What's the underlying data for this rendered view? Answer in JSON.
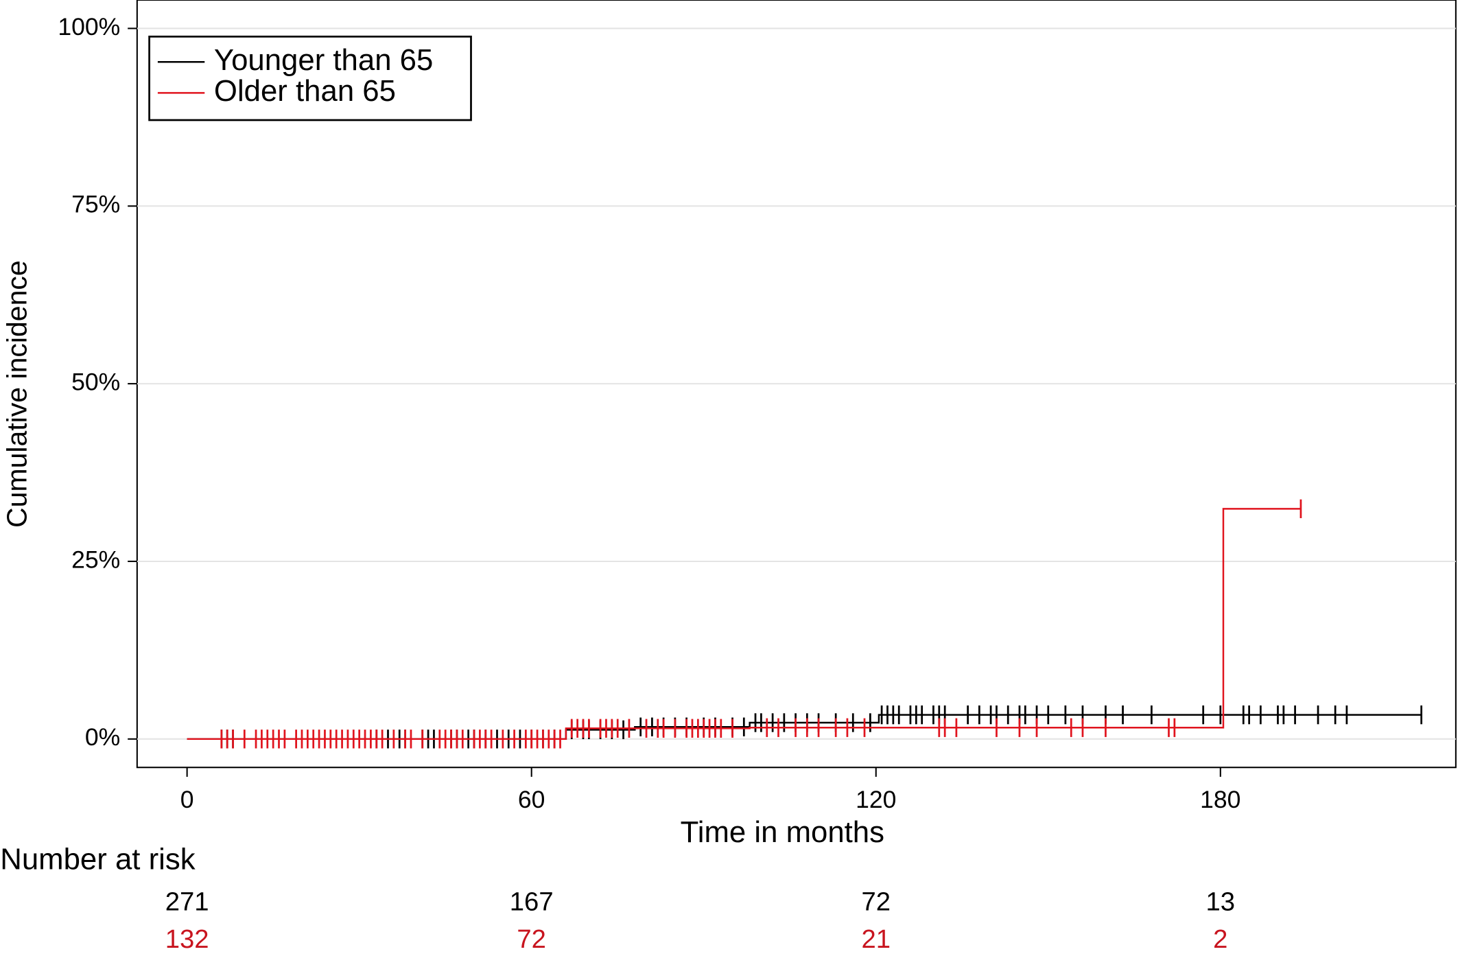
{
  "chart_data": {
    "type": "step",
    "y_label": "Cumulative incidence",
    "x_label": "Time in months",
    "xlim": [
      -8.7,
      221
    ],
    "ylim": [
      -4,
      104
    ],
    "xticks": [
      0,
      60,
      120,
      180
    ],
    "yticks": [
      {
        "value": 0,
        "label": "0%"
      },
      {
        "value": 25,
        "label": "25%"
      },
      {
        "value": 50,
        "label": "50%"
      },
      {
        "value": 75,
        "label": "75%"
      },
      {
        "value": 100,
        "label": "100%"
      }
    ],
    "grid": true,
    "legend": "upper left",
    "series": [
      {
        "name": "Younger than 65",
        "color": "#000000",
        "x": [
          0,
          66,
          78,
          98,
          120.5,
          215
        ],
        "values": [
          0,
          1.3,
          1.7,
          2.3,
          3.4,
          3.4
        ],
        "censored": [
          6,
          7,
          8,
          33,
          35,
          37,
          38,
          41,
          42,
          43,
          46,
          47,
          49,
          50,
          52,
          54,
          56,
          58,
          60,
          62,
          64,
          67,
          69,
          70,
          72,
          74,
          76,
          79,
          81,
          83,
          85,
          87,
          90,
          92,
          95,
          97,
          99,
          100,
          102,
          104,
          106,
          108,
          110,
          113,
          116,
          119,
          121,
          122,
          123,
          124,
          126,
          127,
          128,
          130,
          131,
          132,
          136,
          138,
          140,
          141,
          143,
          145,
          146,
          148,
          150,
          153,
          156,
          160,
          163,
          168,
          177,
          180,
          184,
          185,
          187,
          190,
          191,
          193,
          197,
          200,
          202,
          215
        ]
      },
      {
        "name": "Older than 65",
        "color": "#e0141e",
        "x": [
          0,
          66,
          98,
          180.5,
          194
        ],
        "values": [
          0,
          1.5,
          1.6,
          32.4,
          32.4
        ],
        "censored": [
          6,
          7,
          8,
          10,
          12,
          13,
          14,
          15,
          16,
          17,
          19,
          20,
          21,
          22,
          23,
          24,
          25,
          26,
          27,
          28,
          29,
          30,
          31,
          32,
          33,
          34,
          36,
          38,
          39,
          41,
          44,
          45,
          46,
          47,
          48,
          50,
          51,
          52,
          53,
          55,
          57,
          59,
          60,
          61,
          62,
          63,
          64,
          65,
          67,
          68,
          69,
          70,
          72,
          73,
          74,
          75,
          77,
          80,
          82,
          83,
          85,
          87,
          88,
          89,
          90,
          91,
          92,
          93,
          95,
          101,
          103,
          106,
          108,
          110,
          113,
          115,
          118,
          131,
          132,
          134,
          141,
          145,
          148,
          154,
          156,
          160,
          171,
          172,
          194
        ]
      }
    ],
    "risk_table": {
      "title": "Number at risk",
      "rows": [
        {
          "color": "#000000",
          "values": [
            271,
            167,
            72,
            13
          ]
        },
        {
          "color": "#c8141e",
          "values": [
            132,
            72,
            21,
            2
          ]
        }
      ]
    }
  }
}
